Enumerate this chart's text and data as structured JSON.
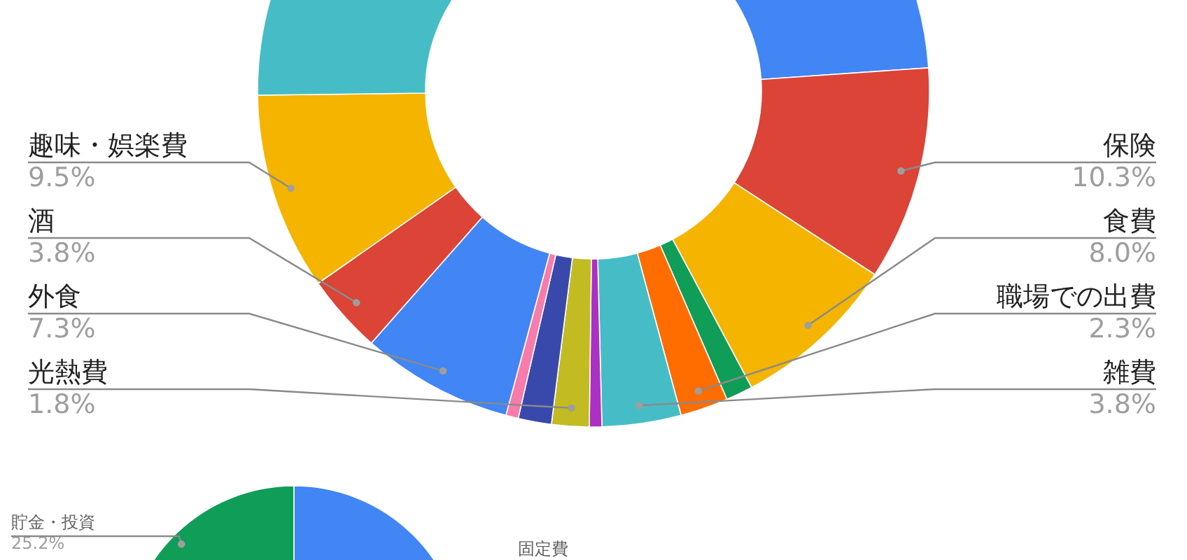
{
  "chart_data": [
    {
      "type": "donut",
      "categories": [
        null,
        "保険",
        "食費",
        null,
        "職場での出費",
        "雑費",
        null,
        "光熱費",
        null,
        null,
        "外食",
        "酒",
        "趣味・娯楽費",
        null
      ],
      "values": [
        23.9,
        10.3,
        8.0,
        1.3,
        2.3,
        3.8,
        0.6,
        1.8,
        1.6,
        0.6,
        7.3,
        3.8,
        9.5,
        25.2
      ],
      "colors": [
        "#4285f4",
        "#db4437",
        "#f4b400",
        "#0f9d58",
        "#ff6d00",
        "#46bdc6",
        "#ab30c4",
        "#c2bb22",
        "#3949ab",
        "#f77bab",
        "#4285f4",
        "#db4437",
        "#f4b400",
        "#46bdc6"
      ],
      "value_labels": [
        null,
        "10.3%",
        "8.0%",
        null,
        "2.3%",
        "3.8%",
        null,
        "1.8%",
        null,
        null,
        "7.3%",
        "3.8%",
        "9.5%",
        null
      ]
    },
    {
      "type": "pie",
      "categories": [
        "固定費",
        "貯金・投資"
      ],
      "values": [
        74.8,
        25.2
      ],
      "colors": [
        "#4285f4",
        "#0f9d58"
      ],
      "value_labels": [
        null,
        "25.2%"
      ]
    }
  ]
}
